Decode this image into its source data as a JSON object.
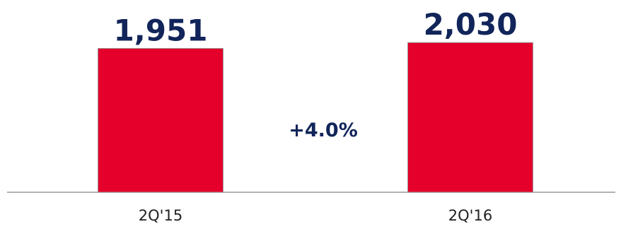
{
  "chart_data": {
    "type": "bar",
    "categories": [
      "2Q'15",
      "2Q'16"
    ],
    "values": [
      1951,
      2030
    ],
    "value_labels": [
      "1,951",
      "2,030"
    ],
    "change_annotation": "+4.0%",
    "title": "",
    "xlabel": "",
    "ylabel": "",
    "ylim": [
      0,
      2080
    ],
    "grid": false,
    "legend": "none"
  },
  "colors": {
    "bar": "#e4002b",
    "bar_edge": "#9a9a9a",
    "value_text": "#12255a",
    "change_text": "#12255a",
    "tick_text": "#222222",
    "axis": "#9a9a9a"
  }
}
